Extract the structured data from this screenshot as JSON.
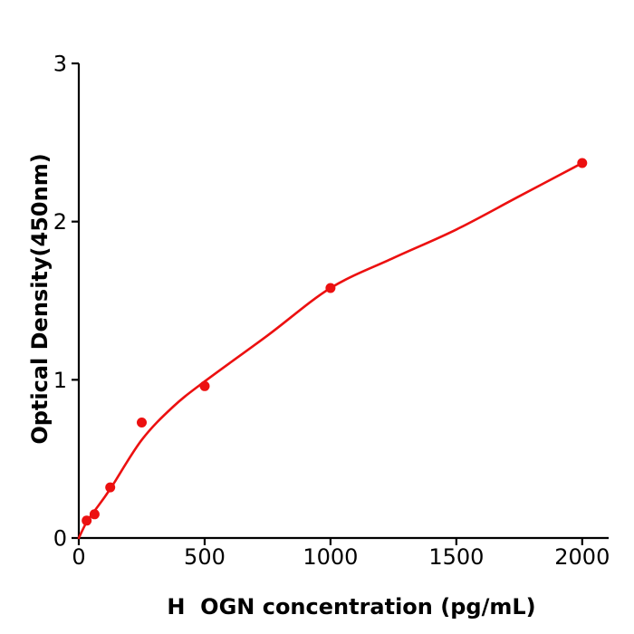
{
  "page": {
    "background": "#ffffff"
  },
  "chart_data": {
    "type": "scatter",
    "title": "",
    "xlabel": "H  OGN concentration (pg/mL)",
    "ylabel": "Optical Density(450nm)",
    "xlim": [
      0,
      2105
    ],
    "ylim": [
      0,
      3
    ],
    "x_tick_values": [
      0,
      500,
      1000,
      1500,
      2000
    ],
    "x_tick_labels": [
      "0",
      "500",
      "1000",
      "1500",
      "2000"
    ],
    "y_tick_values": [
      0,
      1,
      2,
      3
    ],
    "y_tick_labels": [
      "0",
      "1",
      "2",
      "3"
    ],
    "grid": false,
    "legend": "none",
    "colors": {
      "point_color": "#ec1010",
      "curve_color": "#ec1010",
      "axis_color": "#000000",
      "text_color": "#000000"
    },
    "series": [
      {
        "name": "standards",
        "type": "scatter",
        "x": [
          31.25,
          62.5,
          125,
          250,
          500,
          1000,
          2000
        ],
        "y": [
          0.11,
          0.15,
          0.32,
          0.73,
          0.96,
          1.58,
          2.37
        ]
      },
      {
        "name": "fitted_curve",
        "type": "line",
        "x": [
          0,
          31,
          62,
          125,
          250,
          375,
          500,
          750,
          1000,
          1250,
          1500,
          1750,
          2000
        ],
        "y": [
          0,
          0.1,
          0.17,
          0.31,
          0.62,
          0.83,
          0.99,
          1.28,
          1.58,
          1.77,
          1.95,
          2.16,
          2.37
        ]
      }
    ]
  }
}
